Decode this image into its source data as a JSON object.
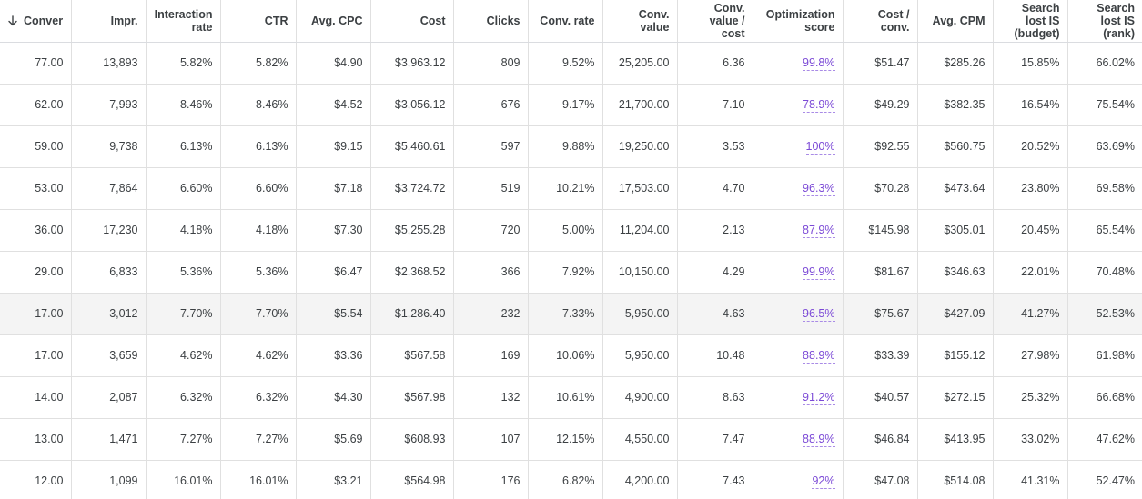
{
  "table": {
    "headers": [
      "Conver",
      "Impr.",
      "Interaction rate",
      "CTR",
      "Avg. CPC",
      "Cost",
      "Clicks",
      "Conv. rate",
      "Conv. value",
      "Conv. value / cost",
      "Optimization score",
      "Cost / conv.",
      "Avg. CPM",
      "Search lost IS (budget)",
      "Search lost IS (rank)"
    ],
    "sort_icon": "arrow-down-icon",
    "rows": [
      [
        "77.00",
        "13,893",
        "5.82%",
        "5.82%",
        "$4.90",
        "$3,963.12",
        "809",
        "9.52%",
        "25,205.00",
        "6.36",
        "99.8%",
        "$51.47",
        "$285.26",
        "15.85%",
        "66.02%"
      ],
      [
        "62.00",
        "7,993",
        "8.46%",
        "8.46%",
        "$4.52",
        "$3,056.12",
        "676",
        "9.17%",
        "21,700.00",
        "7.10",
        "78.9%",
        "$49.29",
        "$382.35",
        "16.54%",
        "75.54%"
      ],
      [
        "59.00",
        "9,738",
        "6.13%",
        "6.13%",
        "$9.15",
        "$5,460.61",
        "597",
        "9.88%",
        "19,250.00",
        "3.53",
        "100%",
        "$92.55",
        "$560.75",
        "20.52%",
        "63.69%"
      ],
      [
        "53.00",
        "7,864",
        "6.60%",
        "6.60%",
        "$7.18",
        "$3,724.72",
        "519",
        "10.21%",
        "17,503.00",
        "4.70",
        "96.3%",
        "$70.28",
        "$473.64",
        "23.80%",
        "69.58%"
      ],
      [
        "36.00",
        "17,230",
        "4.18%",
        "4.18%",
        "$7.30",
        "$5,255.28",
        "720",
        "5.00%",
        "11,204.00",
        "2.13",
        "87.9%",
        "$145.98",
        "$305.01",
        "20.45%",
        "65.54%"
      ],
      [
        "29.00",
        "6,833",
        "5.36%",
        "5.36%",
        "$6.47",
        "$2,368.52",
        "366",
        "7.92%",
        "10,150.00",
        "4.29",
        "99.9%",
        "$81.67",
        "$346.63",
        "22.01%",
        "70.48%"
      ],
      [
        "17.00",
        "3,012",
        "7.70%",
        "7.70%",
        "$5.54",
        "$1,286.40",
        "232",
        "7.33%",
        "5,950.00",
        "4.63",
        "96.5%",
        "$75.67",
        "$427.09",
        "41.27%",
        "52.53%"
      ],
      [
        "17.00",
        "3,659",
        "4.62%",
        "4.62%",
        "$3.36",
        "$567.58",
        "169",
        "10.06%",
        "5,950.00",
        "10.48",
        "88.9%",
        "$33.39",
        "$155.12",
        "27.98%",
        "61.98%"
      ],
      [
        "14.00",
        "2,087",
        "6.32%",
        "6.32%",
        "$4.30",
        "$567.98",
        "132",
        "10.61%",
        "4,900.00",
        "8.63",
        "91.2%",
        "$40.57",
        "$272.15",
        "25.32%",
        "66.68%"
      ],
      [
        "13.00",
        "1,471",
        "7.27%",
        "7.27%",
        "$5.69",
        "$608.93",
        "107",
        "12.15%",
        "4,550.00",
        "7.47",
        "88.9%",
        "$46.84",
        "$413.95",
        "33.02%",
        "47.62%"
      ],
      [
        "12.00",
        "1,099",
        "16.01%",
        "16.01%",
        "$3.21",
        "$564.98",
        "176",
        "6.82%",
        "4,200.00",
        "7.43",
        "92%",
        "$47.08",
        "$514.08",
        "41.31%",
        "52.47%"
      ]
    ],
    "highlighted_row": 6,
    "link_color": "#7b49d6"
  }
}
